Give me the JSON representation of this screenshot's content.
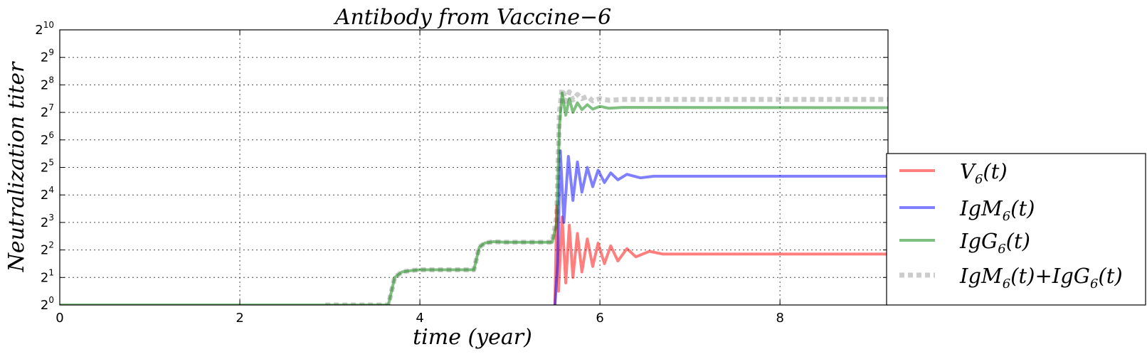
{
  "chart_data": {
    "type": "line",
    "title": "Antibody from Vaccine−6",
    "xlabel": "time (year)",
    "ylabel": "Neutralization titer",
    "xlim": [
      0,
      9.2
    ],
    "ylim_log2": [
      0,
      10
    ],
    "y_scale": "log2",
    "grid": true,
    "legend_position": "right",
    "x_ticks": [
      {
        "value": 0,
        "label": "0"
      },
      {
        "value": 2,
        "label": "2"
      },
      {
        "value": 4,
        "label": "4"
      },
      {
        "value": 6,
        "label": "6"
      },
      {
        "value": 8,
        "label": "8"
      }
    ],
    "y_ticks": [
      {
        "exp": 0,
        "base": "2",
        "sup": "0"
      },
      {
        "exp": 1,
        "base": "2",
        "sup": "1"
      },
      {
        "exp": 2,
        "base": "2",
        "sup": "2"
      },
      {
        "exp": 3,
        "base": "2",
        "sup": "3"
      },
      {
        "exp": 4,
        "base": "2",
        "sup": "4"
      },
      {
        "exp": 5,
        "base": "2",
        "sup": "5"
      },
      {
        "exp": 6,
        "base": "2",
        "sup": "6"
      },
      {
        "exp": 7,
        "base": "2",
        "sup": "7"
      },
      {
        "exp": 8,
        "base": "2",
        "sup": "8"
      },
      {
        "exp": 9,
        "base": "2",
        "sup": "9"
      },
      {
        "exp": 10,
        "base": "2",
        "sup": "10"
      }
    ],
    "series": [
      {
        "name": "V6(t)",
        "label_main": "V",
        "label_sub": "6",
        "label_rest": "(t)",
        "color": "#ff0000",
        "style": "solid",
        "points": [
          [
            5.5,
            0
          ],
          [
            5.52,
            3.6
          ],
          [
            5.54,
            0.5
          ],
          [
            5.58,
            3.2
          ],
          [
            5.62,
            0.8
          ],
          [
            5.66,
            2.9
          ],
          [
            5.7,
            1.0
          ],
          [
            5.75,
            2.6
          ],
          [
            5.8,
            1.2
          ],
          [
            5.86,
            2.4
          ],
          [
            5.92,
            1.4
          ],
          [
            5.98,
            2.25
          ],
          [
            6.05,
            1.5
          ],
          [
            6.12,
            2.15
          ],
          [
            6.2,
            1.6
          ],
          [
            6.3,
            2.05
          ],
          [
            6.4,
            1.75
          ],
          [
            6.55,
            1.95
          ],
          [
            6.7,
            1.85
          ],
          [
            9.2,
            1.85
          ]
        ]
      },
      {
        "name": "IgM6(t)",
        "label_main": "IgM",
        "label_sub": "6",
        "label_rest": "(t)",
        "color": "#0000ff",
        "style": "solid",
        "points": [
          [
            5.5,
            0
          ],
          [
            5.53,
            1.5
          ],
          [
            5.56,
            5.6
          ],
          [
            5.6,
            3.0
          ],
          [
            5.65,
            5.4
          ],
          [
            5.7,
            3.8
          ],
          [
            5.75,
            5.2
          ],
          [
            5.8,
            4.1
          ],
          [
            5.86,
            5.0
          ],
          [
            5.92,
            4.3
          ],
          [
            5.98,
            4.9
          ],
          [
            6.05,
            4.45
          ],
          [
            6.12,
            4.8
          ],
          [
            6.2,
            4.55
          ],
          [
            6.3,
            4.75
          ],
          [
            6.45,
            4.62
          ],
          [
            6.6,
            4.68
          ],
          [
            9.2,
            4.68
          ]
        ]
      },
      {
        "name": "IgG6(t)",
        "label_main": "IgG",
        "label_sub": "6",
        "label_rest": "(t)",
        "color": "#008000",
        "style": "solid",
        "points": [
          [
            0,
            0
          ],
          [
            3.65,
            0
          ],
          [
            3.72,
            1.0
          ],
          [
            3.8,
            1.2
          ],
          [
            3.9,
            1.25
          ],
          [
            4.0,
            1.28
          ],
          [
            4.6,
            1.28
          ],
          [
            4.66,
            2.1
          ],
          [
            4.72,
            2.25
          ],
          [
            4.82,
            2.3
          ],
          [
            4.95,
            2.28
          ],
          [
            5.47,
            2.28
          ],
          [
            5.52,
            3.0
          ],
          [
            5.55,
            6.5
          ],
          [
            5.58,
            7.7
          ],
          [
            5.62,
            6.9
          ],
          [
            5.66,
            7.5
          ],
          [
            5.7,
            7.0
          ],
          [
            5.75,
            7.35
          ],
          [
            5.8,
            7.1
          ],
          [
            5.86,
            7.28
          ],
          [
            5.92,
            7.12
          ],
          [
            6.0,
            7.22
          ],
          [
            6.1,
            7.15
          ],
          [
            6.25,
            7.18
          ],
          [
            9.2,
            7.17
          ]
        ]
      },
      {
        "name": "IgM6(t)+IgG6(t)",
        "label_main": "IgM",
        "label_sub": "6",
        "label_rest": "(t)+IgG",
        "label_sub2": "6",
        "label_rest2": "(t)",
        "color": "#999999",
        "style": "dotted",
        "points": [
          [
            2.95,
            0
          ],
          [
            3.65,
            0
          ],
          [
            3.72,
            1.0
          ],
          [
            3.8,
            1.2
          ],
          [
            3.9,
            1.25
          ],
          [
            4.0,
            1.28
          ],
          [
            4.6,
            1.28
          ],
          [
            4.66,
            2.1
          ],
          [
            4.72,
            2.25
          ],
          [
            4.82,
            2.3
          ],
          [
            4.95,
            2.28
          ],
          [
            5.47,
            2.28
          ],
          [
            5.52,
            3.2
          ],
          [
            5.55,
            7.0
          ],
          [
            5.58,
            7.85
          ],
          [
            5.62,
            7.4
          ],
          [
            5.66,
            7.75
          ],
          [
            5.7,
            7.45
          ],
          [
            5.75,
            7.65
          ],
          [
            5.8,
            7.5
          ],
          [
            5.86,
            7.58
          ],
          [
            5.92,
            7.42
          ],
          [
            6.0,
            7.5
          ],
          [
            6.1,
            7.44
          ],
          [
            6.25,
            7.47
          ],
          [
            9.2,
            7.47
          ]
        ]
      }
    ]
  }
}
